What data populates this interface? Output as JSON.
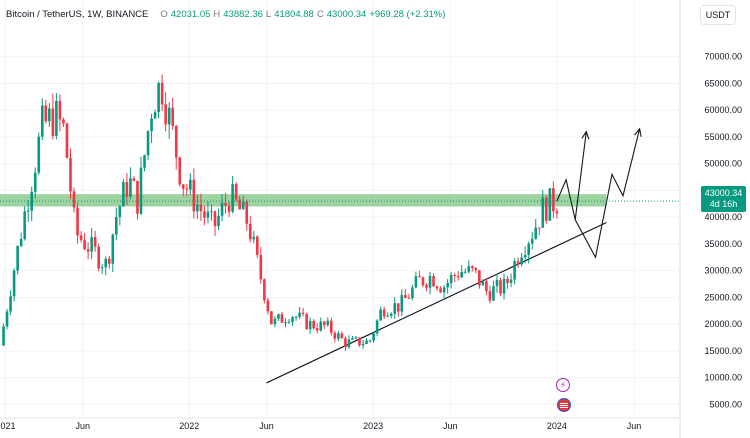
{
  "header": {
    "symbol": "Bitcoin / TetherUS, 1W, BINANCE",
    "o_label": "O",
    "o_value": "42031.05",
    "h_label": "H",
    "h_value": "43882.36",
    "l_label": "L",
    "l_value": "41804.88",
    "c_label": "C",
    "c_value": "43000.34",
    "change": "+969.28 (+2.31%)"
  },
  "currency_button": "USDT",
  "price_label": {
    "value": "43000.34",
    "countdown": "4d 16h"
  },
  "colors": {
    "up": "#089981",
    "down": "#f23645",
    "zone": "#4caf50",
    "trend": "#131722",
    "grid": "#f0f3fa"
  },
  "chart_data": {
    "type": "candlestick",
    "y_ticks": [
      "70000.00",
      "65000.00",
      "60000.00",
      "55000.00",
      "50000.00",
      "45000.00",
      "40000.00",
      "35000.00",
      "30000.00",
      "25000.00",
      "20000.00",
      "15000.00",
      "10000.00",
      "5000.00"
    ],
    "x_ticks": [
      "2021",
      "Jun",
      "2022",
      "Jun",
      "2023",
      "Jun",
      "2024",
      "Jun"
    ],
    "x_tick_dates": [
      2021.0,
      2021.42,
      2022.0,
      2022.42,
      2023.0,
      2023.42,
      2024.0,
      2024.42
    ],
    "ylim": [
      3000,
      75000
    ],
    "xlim": [
      2020.97,
      2024.67
    ],
    "anchors": [
      [
        2020.97,
        16000
      ],
      [
        2021.05,
        31000
      ],
      [
        2021.1,
        40000
      ],
      [
        2021.2,
        57000
      ],
      [
        2021.27,
        59000
      ],
      [
        2021.32,
        56000
      ],
      [
        2021.38,
        37000
      ],
      [
        2021.47,
        34000
      ],
      [
        2021.55,
        31000
      ],
      [
        2021.6,
        40000
      ],
      [
        2021.67,
        47000
      ],
      [
        2021.72,
        43000
      ],
      [
        2021.8,
        62000
      ],
      [
        2021.85,
        65000
      ],
      [
        2021.9,
        57000
      ],
      [
        2021.96,
        47000
      ],
      [
        2022.05,
        42000
      ],
      [
        2022.13,
        38000
      ],
      [
        2022.22,
        44000
      ],
      [
        2022.32,
        39000
      ],
      [
        2022.38,
        30000
      ],
      [
        2022.45,
        20000
      ],
      [
        2022.55,
        22000
      ],
      [
        2022.65,
        20000
      ],
      [
        2022.75,
        19500
      ],
      [
        2022.85,
        16500
      ],
      [
        2022.98,
        16700
      ],
      [
        2023.05,
        23000
      ],
      [
        2023.15,
        23500
      ],
      [
        2023.25,
        28000
      ],
      [
        2023.32,
        29000
      ],
      [
        2023.38,
        27000
      ],
      [
        2023.47,
        30000
      ],
      [
        2023.55,
        29500
      ],
      [
        2023.62,
        26000
      ],
      [
        2023.72,
        27000
      ],
      [
        2023.8,
        34000
      ],
      [
        2023.87,
        37500
      ],
      [
        2023.93,
        42000
      ],
      [
        2024.0,
        43000
      ]
    ],
    "zone": {
      "from": 42000,
      "to": 44300,
      "x_from": 2020.97,
      "x_to": 2024.27
    },
    "trendline": {
      "x": [
        2022.42,
        2024.27
      ],
      "y": [
        9000,
        39000
      ]
    },
    "projection_a": [
      [
        2024.0,
        43000
      ],
      [
        2024.05,
        47000
      ],
      [
        2024.1,
        39500
      ],
      [
        2024.16,
        56000
      ]
    ],
    "projection_b": [
      [
        2024.1,
        39500
      ],
      [
        2024.21,
        32500
      ],
      [
        2024.3,
        48000
      ],
      [
        2024.36,
        44000
      ],
      [
        2024.45,
        56500
      ]
    ]
  }
}
